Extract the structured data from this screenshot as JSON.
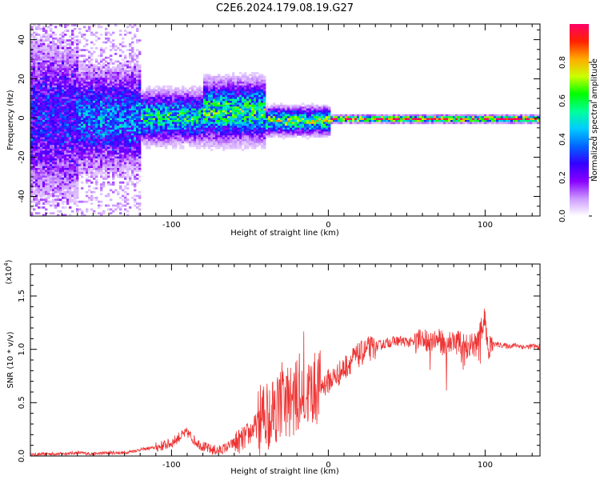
{
  "figure_title": "C2E6.2024.179.08.19.G27",
  "chart_data": [
    {
      "type": "heatmap",
      "title": "C2E6.2024.179.08.19.G27",
      "xlabel": "Height of straight line (km)",
      "ylabel": "Frequency (Hz)",
      "xlim": [
        -190,
        135
      ],
      "ylim": [
        -50,
        48
      ],
      "x_ticks": [
        -100,
        0,
        100
      ],
      "y_ticks": [
        -40,
        -20,
        0,
        20,
        40
      ],
      "colorbar": {
        "label": "Normalized spectral amplitude",
        "range": [
          0,
          1
        ],
        "ticks": [
          0.0,
          0.2,
          0.4,
          0.6,
          0.8
        ],
        "colormap": [
          "#ffffff",
          "#cc99ff",
          "#8800ff",
          "#3300ff",
          "#0066ff",
          "#00ccff",
          "#00ff99",
          "#00ff00",
          "#ccff00",
          "#ffaa00",
          "#ff2200",
          "#ff0066"
        ]
      },
      "bands": [
        {
          "x": [
            -190,
            -160
          ],
          "center_hz": 0,
          "spread_hz": 48,
          "peak_amp": 0.25
        },
        {
          "x": [
            -160,
            -120
          ],
          "center_hz": 0,
          "spread_hz": 30,
          "peak_amp": 0.35
        },
        {
          "x": [
            -120,
            -80
          ],
          "center_hz": 1,
          "spread_hz": 15,
          "peak_amp": 0.5
        },
        {
          "x": [
            -80,
            -40
          ],
          "center_hz": 4,
          "spread_hz": 18,
          "peak_amp": 0.55
        },
        {
          "x": [
            -40,
            0
          ],
          "center_hz": -1,
          "spread_hz": 8,
          "peak_amp": 0.6
        },
        {
          "x": [
            0,
            135
          ],
          "center_hz": 0,
          "spread_hz": 2,
          "peak_amp": 0.98
        }
      ]
    },
    {
      "type": "line",
      "xlabel": "Height of straight line (km)",
      "ylabel": "SNR (10 * v/v)",
      "y_multiplier": "(x10",
      "y_multiplier_exp": "4",
      "y_multiplier_close": ")",
      "xlim": [
        -190,
        135
      ],
      "ylim": [
        0,
        1.8
      ],
      "x_ticks": [
        -100,
        0,
        100
      ],
      "y_ticks": [
        0.0,
        0.5,
        1.0,
        1.5
      ],
      "color": "#ee3333",
      "series": [
        {
          "x": [
            -190,
            -180,
            -170,
            -160,
            -150,
            -140,
            -130,
            -120,
            -110,
            -100,
            -95,
            -90,
            -85,
            -80,
            -75,
            -70,
            -65,
            -60,
            -55,
            -50,
            -45,
            -40,
            -35,
            -30,
            -25,
            -20,
            -15,
            -10,
            -5,
            0,
            5,
            10,
            15,
            20,
            25,
            30,
            35,
            40,
            45,
            50,
            55,
            60,
            65,
            70,
            75,
            80,
            85,
            90,
            95,
            98,
            100,
            102,
            105,
            110,
            115,
            120,
            125,
            130,
            135
          ],
          "values": [
            0.01,
            0.02,
            0.02,
            0.03,
            0.02,
            0.03,
            0.03,
            0.06,
            0.08,
            0.12,
            0.18,
            0.22,
            0.14,
            0.09,
            0.06,
            0.05,
            0.08,
            0.12,
            0.15,
            0.22,
            0.3,
            0.38,
            0.45,
            0.5,
            0.52,
            0.55,
            0.58,
            0.62,
            0.65,
            0.7,
            0.75,
            0.82,
            0.9,
            0.95,
            1.0,
            1.02,
            1.05,
            1.07,
            1.08,
            1.07,
            1.06,
            1.08,
            1.1,
            1.08,
            1.05,
            1.08,
            1.05,
            1.02,
            1.05,
            1.2,
            1.3,
            1.0,
            1.05,
            1.04,
            1.03,
            1.04,
            1.02,
            1.03,
            1.02
          ]
        }
      ]
    }
  ]
}
